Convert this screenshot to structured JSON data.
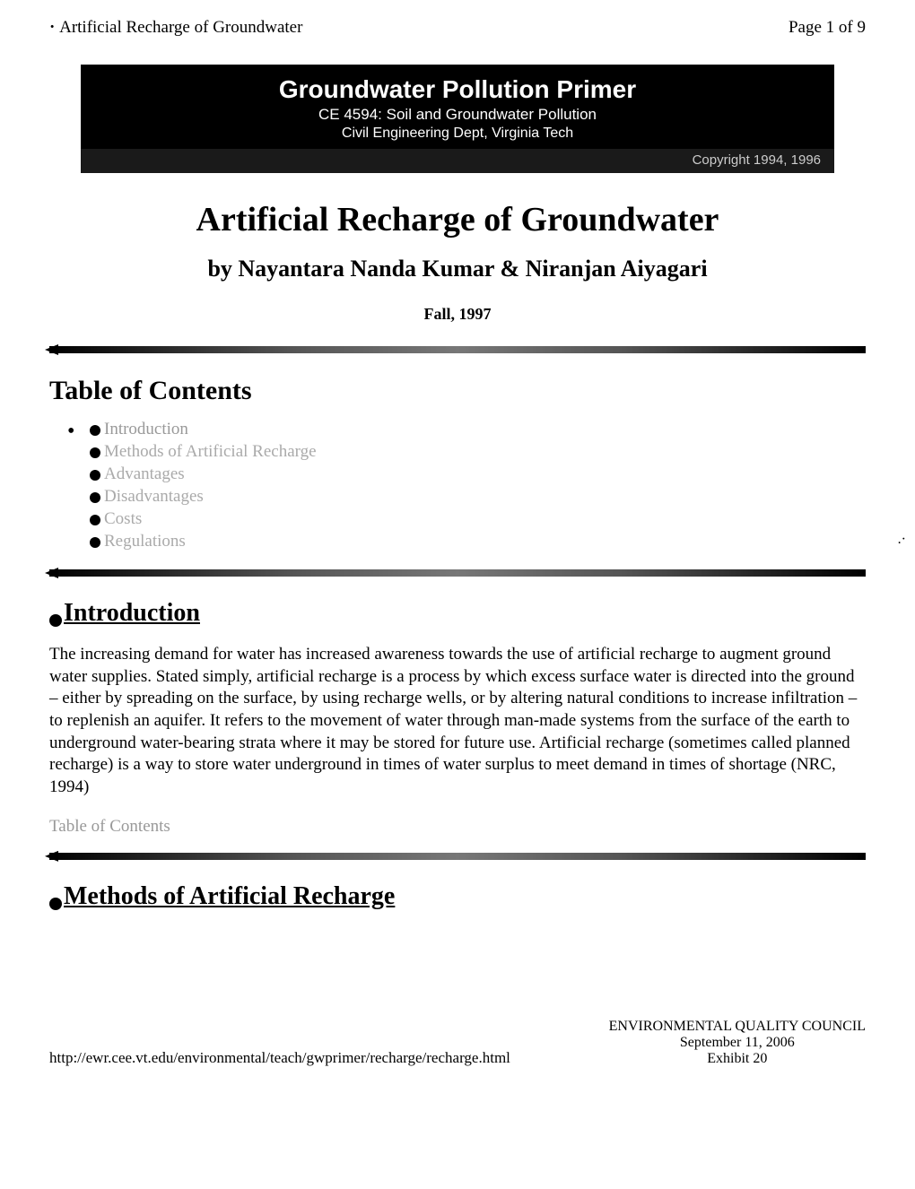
{
  "header": {
    "left": "Artificial Recharge of Groundwater",
    "right": "Page 1 of 9"
  },
  "banner": {
    "title": "Groundwater Pollution Primer",
    "subtitle": "CE 4594: Soil and Groundwater Pollution",
    "dept": "Civil Engineering Dept, Virginia Tech",
    "copyright": "Copyright 1994, 1996"
  },
  "title": {
    "main": "Artificial Recharge of Groundwater",
    "authors": "by Nayantara Nanda Kumar & Niranjan Aiyagari",
    "date": "Fall, 1997"
  },
  "toc": {
    "heading": "Table of Contents",
    "items": [
      "Introduction",
      "Methods of Artificial Recharge",
      "Advantages",
      "Disadvantages",
      "Costs",
      "Regulations"
    ]
  },
  "sections": {
    "introduction": {
      "heading": "Introduction",
      "body": "The increasing demand for water has increased awareness towards the use of artificial recharge to augment ground water supplies. Stated simply, artificial recharge is a process by which excess surface water is directed into the ground – either by spreading on the surface, by using recharge wells, or by altering natural conditions to increase infiltration – to replenish an aquifer. It refers to the movement of water through man-made systems from the surface of the earth to underground water-bearing strata where it may be stored for future use. Artificial recharge (sometimes called planned recharge) is a way to store water underground in times of water surplus to meet demand in times of shortage (NRC, 1994)",
      "toc_link": "Table of Contents"
    },
    "methods": {
      "heading": "Methods of Artificial Recharge"
    }
  },
  "footer": {
    "url": "http://ewr.cee.vt.edu/environmental/teach/gwprimer/recharge/recharge.html",
    "org": "ENVIRONMENTAL QUALITY COUNCIL",
    "date": "September 11, 2006",
    "exhibit": "Exhibit 20"
  },
  "colors": {
    "text": "#000000",
    "faded_text": "#999999",
    "banner_bg": "#000000",
    "banner_text": "#ffffff",
    "background": "#ffffff"
  }
}
